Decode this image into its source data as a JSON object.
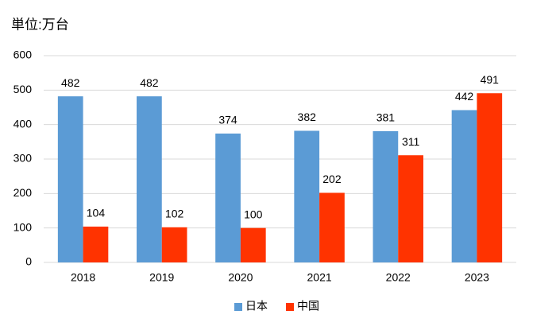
{
  "chart_data": {
    "type": "bar",
    "title": "単位:万台",
    "categories": [
      "2018",
      "2019",
      "2020",
      "2021",
      "2022",
      "2023"
    ],
    "series": [
      {
        "name": "日本",
        "color": "#5b9bd5",
        "values": [
          482,
          482,
          374,
          382,
          381,
          442
        ]
      },
      {
        "name": "中国",
        "color": "#ff3300",
        "values": [
          104,
          102,
          100,
          202,
          311,
          491
        ]
      }
    ],
    "ylim": [
      0,
      600
    ],
    "yticks": [
      0,
      100,
      200,
      300,
      400,
      500,
      600
    ],
    "grid": true,
    "legend": "bottom"
  }
}
